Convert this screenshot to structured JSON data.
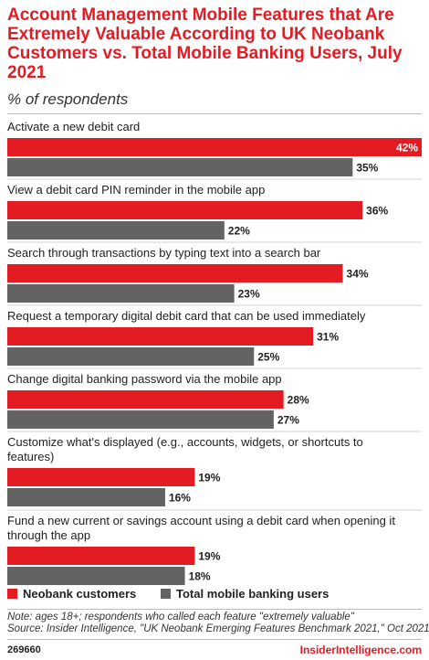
{
  "chart_data": {
    "type": "bar",
    "orientation": "horizontal",
    "title": "Account Management Mobile Features that Are Extremely Valuable According to UK Neobank Customers vs. Total Mobile Banking Users, July 2021",
    "subtitle": "% of respondents",
    "categories": [
      "Activate a new debit card",
      "View a debit card PIN reminder in the mobile app",
      "Search through transactions by typing text into a search bar",
      "Request a temporary digital debit card that can be used immediately",
      "Change digital banking password via the mobile app",
      "Customize what's displayed (e.g., accounts, widgets, or shortcuts to features)",
      "Fund a new current or savings account using a debit card when opening it through the app"
    ],
    "category_lines": [
      [
        "Activate a new debit card"
      ],
      [
        "View a debit card PIN reminder in the mobile app"
      ],
      [
        "Search through transactions by typing text into a search bar"
      ],
      [
        "Request a temporary digital debit card that can be used immediately"
      ],
      [
        "Change digital banking password via the mobile app"
      ],
      [
        "Customize what's displayed (e.g., accounts, widgets, or shortcuts to",
        "features)"
      ],
      [
        "Fund a new current or savings account using a debit card when opening it",
        "through the app"
      ]
    ],
    "series": [
      {
        "name": "Neobank customers",
        "color": "#e31b23",
        "values": [
          42,
          36,
          34,
          31,
          28,
          19,
          19
        ],
        "labels": [
          "42%",
          "36%",
          "34%",
          "31%",
          "28%",
          "19%",
          "19%"
        ]
      },
      {
        "name": "Total mobile banking users",
        "color": "#636363",
        "values": [
          35,
          22,
          23,
          25,
          27,
          16,
          18
        ],
        "labels": [
          "35%",
          "22%",
          "23%",
          "25%",
          "27%",
          "16%",
          "18%"
        ]
      }
    ],
    "xlim": [
      0,
      42
    ],
    "grid": false,
    "legend_position": "bottom-left"
  },
  "note": "Note: ages 18+; respondents who called each feature \"extremely valuable\"",
  "source": "Source: Insider Intelligence, \"UK Neobank Emerging Features Benchmark 2021,\" Oct 2021",
  "chart_id": "269660",
  "brand": "InsiderIntelligence.com"
}
